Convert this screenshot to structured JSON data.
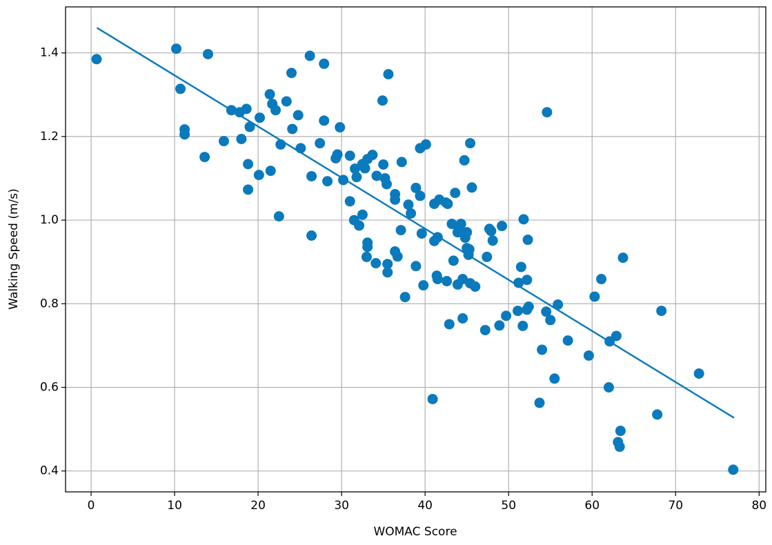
{
  "chart_data": {
    "type": "scatter",
    "xlabel": "WOMAC Score",
    "ylabel": "Walking Speed (m/s)",
    "xlim": [
      -3.06,
      80.8
    ],
    "ylim": [
      0.35,
      1.51
    ],
    "xticks": [
      0,
      10,
      20,
      30,
      40,
      50,
      60,
      70,
      80
    ],
    "yticks": [
      0.4,
      0.6,
      0.8,
      {
        "value": 1.0,
        "label": "1.0"
      },
      1.2,
      1.4
    ],
    "grid": true,
    "color": "#0a7abd",
    "x": [
      0.66,
      10.2,
      10.7,
      11.2,
      11.2,
      14.0,
      13.6,
      15.9,
      16.8,
      17.8,
      18.6,
      18.0,
      19.0,
      18.8,
      18.8,
      20.2,
      20.1,
      21.4,
      21.7,
      22.1,
      21.5,
      22.5,
      22.7,
      23.4,
      24.0,
      24.1,
      24.8,
      25.1,
      26.2,
      26.4,
      26.4,
      27.4,
      27.9,
      27.9,
      28.3,
      29.3,
      29.5,
      29.8,
      30.2,
      31.0,
      31.0,
      31.6,
      31.8,
      31.5,
      32.1,
      32.5,
      32.5,
      32.8,
      33.1,
      33.7,
      33.1,
      33.1,
      33.0,
      34.1,
      34.2,
      34.9,
      35.0,
      35.2,
      35.4,
      35.6,
      35.5,
      35.5,
      36.4,
      36.4,
      36.4,
      36.7,
      37.2,
      37.1,
      37.6,
      38.0,
      38.3,
      38.9,
      38.9,
      39.4,
      39.4,
      39.6,
      39.8,
      40.1,
      40.9,
      41.1,
      41.1,
      41.5,
      41.4,
      41.5,
      41.7,
      42.5,
      42.7,
      42.6,
      42.9,
      43.2,
      43.4,
      43.6,
      43.9,
      44.0,
      43.9,
      44.3,
      44.5,
      44.5,
      44.7,
      44.8,
      45.0,
      45.0,
      45.3,
      45.2,
      45.4,
      45.4,
      45.6,
      46.0,
      47.2,
      47.4,
      47.7,
      47.9,
      48.1,
      48.9,
      49.2,
      49.7,
      51.1,
      51.2,
      51.5,
      51.7,
      51.8,
      52.2,
      52.2,
      52.4,
      52.3,
      53.7,
      54.0,
      54.5,
      54.6,
      55.0,
      55.5,
      55.9,
      57.1,
      59.6,
      60.3,
      61.1,
      62.0,
      62.1,
      62.9,
      63.1,
      63.3,
      63.4,
      63.7,
      67.8,
      68.3,
      72.8,
      76.9
    ],
    "y": [
      1.385,
      1.41,
      1.314,
      1.217,
      1.205,
      1.397,
      1.151,
      1.189,
      1.263,
      1.258,
      1.266,
      1.194,
      1.223,
      1.134,
      1.073,
      1.245,
      1.108,
      1.301,
      1.278,
      1.263,
      1.118,
      1.009,
      1.181,
      1.284,
      1.352,
      1.218,
      1.251,
      1.172,
      1.393,
      1.105,
      0.963,
      1.184,
      1.374,
      1.238,
      1.093,
      1.148,
      1.157,
      1.222,
      1.096,
      1.045,
      1.154,
      1.123,
      1.103,
      1.0,
      0.987,
      1.013,
      1.134,
      1.124,
      1.146,
      1.156,
      0.946,
      0.936,
      0.912,
      0.897,
      1.106,
      1.286,
      1.133,
      1.1,
      1.086,
      1.349,
      0.895,
      0.875,
      1.062,
      1.049,
      0.925,
      0.913,
      1.139,
      0.976,
      0.816,
      1.037,
      1.016,
      1.077,
      0.89,
      1.172,
      1.058,
      0.968,
      0.844,
      1.181,
      0.572,
      1.039,
      0.95,
      0.959,
      0.867,
      0.859,
      1.049,
      1.042,
      1.039,
      0.854,
      0.751,
      0.991,
      0.903,
      1.065,
      0.971,
      0.981,
      0.846,
      0.991,
      0.859,
      0.765,
      1.143,
      0.958,
      0.971,
      0.933,
      0.93,
      0.917,
      1.184,
      0.849,
      1.078,
      0.841,
      0.737,
      0.912,
      0.979,
      0.974,
      0.951,
      0.748,
      0.986,
      0.771,
      0.783,
      0.85,
      0.888,
      0.747,
      1.002,
      0.857,
      0.786,
      0.793,
      0.953,
      0.563,
      0.69,
      0.781,
      1.258,
      0.761,
      0.621,
      0.798,
      0.712,
      0.676,
      0.817,
      0.859,
      0.6,
      0.71,
      0.723,
      0.469,
      0.458,
      0.496,
      0.91,
      0.535,
      0.783,
      0.633,
      0.403
    ],
    "line": {
      "x": [
        0.7,
        77.0
      ],
      "y": [
        1.46,
        0.527
      ]
    }
  }
}
